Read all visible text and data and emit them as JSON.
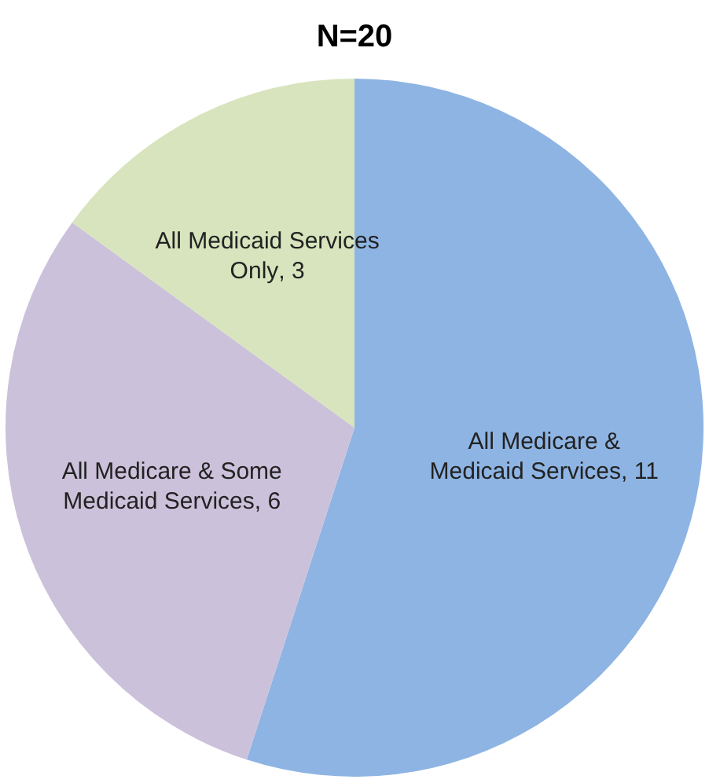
{
  "chart_data": {
    "type": "pie",
    "title": "N=20",
    "categories": [
      "All Medicare & Medicaid Services",
      "All Medicare & Some Medicaid Services",
      "All Medicaid Services Only"
    ],
    "values": [
      11,
      6,
      3
    ],
    "colors": [
      "#8eb4e3",
      "#ccc1da",
      "#d7e4bd"
    ],
    "value_labels": [
      ", 11",
      ", 6",
      ", 3"
    ],
    "legend": false
  }
}
